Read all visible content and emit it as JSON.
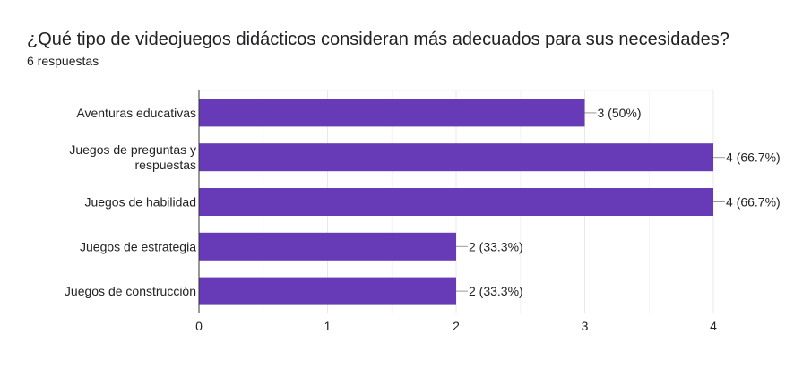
{
  "header": {
    "title": "¿Qué tipo de videojuegos didácticos consideran más adecuados para sus necesidades?",
    "responses": "6 respuestas"
  },
  "colors": {
    "bar": "#673ab7",
    "grid": "#e8e8e8",
    "axis": "#333333",
    "text": "#222222"
  },
  "chart_data": {
    "type": "bar",
    "orientation": "horizontal",
    "categories": [
      [
        "Aventuras educativas"
      ],
      [
        "Juegos de preguntas y",
        "respuestas"
      ],
      [
        "Juegos de habilidad"
      ],
      [
        "Juegos de estrategia"
      ],
      [
        "Juegos de construcción"
      ]
    ],
    "values": [
      3,
      4,
      4,
      2,
      2
    ],
    "data_labels": [
      "3 (50%)",
      "4 (66.7%)",
      "4 (66.7%)",
      "2 (33.3%)",
      "2 (33.3%)"
    ],
    "xlim": [
      0,
      4
    ],
    "xticks": [
      "0",
      "1",
      "2",
      "3",
      "4"
    ],
    "grid": true,
    "legend": "none"
  }
}
